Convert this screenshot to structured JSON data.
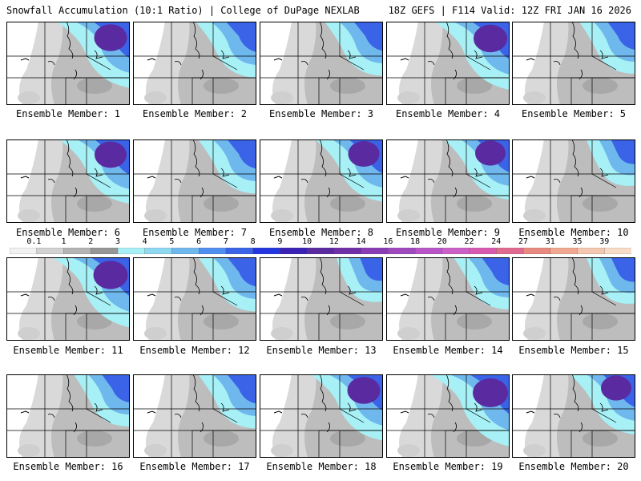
{
  "header": {
    "left": "Snowfall Accumulation (10:1 Ratio) | College of DuPage NEXLAB",
    "right": "18Z GEFS | F114 Valid: 12Z FRI JAN 16 2026"
  },
  "panel_label_prefix": "Ensemble Member: ",
  "members": [
    {
      "id": 1,
      "label": "Ensemble Member: 1",
      "intensity": 0.85
    },
    {
      "id": 2,
      "label": "Ensemble Member: 2",
      "intensity": 0.6
    },
    {
      "id": 3,
      "label": "Ensemble Member: 3",
      "intensity": 0.55
    },
    {
      "id": 4,
      "label": "Ensemble Member: 4",
      "intensity": 0.9
    },
    {
      "id": 5,
      "label": "Ensemble Member: 5",
      "intensity": 0.5
    },
    {
      "id": 6,
      "label": "Ensemble Member: 6",
      "intensity": 0.8
    },
    {
      "id": 7,
      "label": "Ensemble Member: 7",
      "intensity": 0.55
    },
    {
      "id": 8,
      "label": "Ensemble Member: 8",
      "intensity": 0.75
    },
    {
      "id": 9,
      "label": "Ensemble Member: 9",
      "intensity": 0.7
    },
    {
      "id": 10,
      "label": "Ensemble Member: 10",
      "intensity": 0.35
    },
    {
      "id": 11,
      "label": "Ensemble Member: 11",
      "intensity": 0.95
    },
    {
      "id": 12,
      "label": "Ensemble Member: 12",
      "intensity": 0.55
    },
    {
      "id": 13,
      "label": "Ensemble Member: 13",
      "intensity": 0.3
    },
    {
      "id": 14,
      "label": "Ensemble Member: 14",
      "intensity": 0.5
    },
    {
      "id": 15,
      "label": "Ensemble Member: 15",
      "intensity": 0.35
    },
    {
      "id": 16,
      "label": "Ensemble Member: 16",
      "intensity": 0.5
    },
    {
      "id": 17,
      "label": "Ensemble Member: 17",
      "intensity": 0.55
    },
    {
      "id": 18,
      "label": "Ensemble Member: 18",
      "intensity": 0.85
    },
    {
      "id": 19,
      "label": "Ensemble Member: 19",
      "intensity": 1.0
    },
    {
      "id": 20,
      "label": "Ensemble Member: 20",
      "intensity": 0.7
    }
  ],
  "colorbar": {
    "labels": [
      "0.1",
      "1",
      "2",
      "3",
      "4",
      "5",
      "6",
      "7",
      "8",
      "9",
      "10",
      "12",
      "14",
      "16",
      "18",
      "20",
      "22",
      "24",
      "27",
      "31",
      "35",
      "39"
    ],
    "colors": [
      "#f2f2f2",
      "#d2d2d2",
      "#b4b4b4",
      "#969696",
      "#a6f0f6",
      "#8fd8f2",
      "#6fb8ee",
      "#4f8ff0",
      "#3a63e8",
      "#2336e0",
      "#3a22b4",
      "#5a2aa0",
      "#7230a8",
      "#8a3cb4",
      "#a048c0",
      "#b854c8",
      "#cc60c8",
      "#d85ab0",
      "#e06a90",
      "#e88a80",
      "#f0a890",
      "#f4c8b0",
      "#f8dcc8"
    ]
  }
}
